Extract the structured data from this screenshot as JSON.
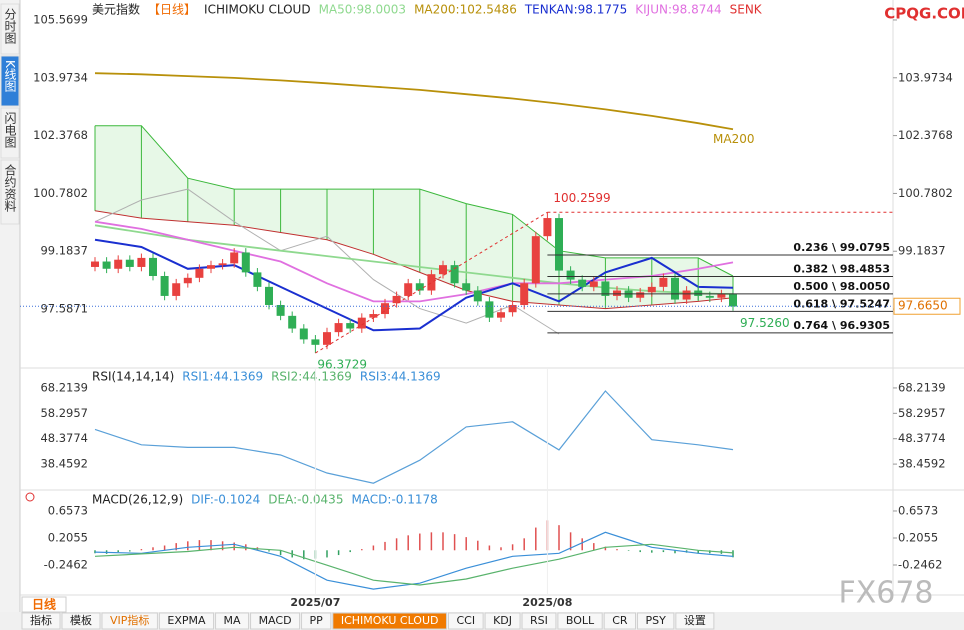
{
  "sidebar": {
    "tabs": [
      "分时图",
      "K线图",
      "闪电图",
      "合约资料"
    ],
    "active": 1
  },
  "legend": [
    {
      "text": "美元指数",
      "color": "#222222"
    },
    {
      "text": "【日线】",
      "color": "#f06a00"
    },
    {
      "text": "ICHIMOKU CLOUD",
      "color": "#222222"
    },
    {
      "text": "MA50:98.0003",
      "color": "#8fd98f"
    },
    {
      "text": "MA200:102.5486",
      "color": "#b8900a"
    },
    {
      "text": "TENKAN:98.1775",
      "color": "#1a2fd0"
    },
    {
      "text": "KIJUN:98.8744",
      "color": "#e070e0"
    },
    {
      "text": "SENK",
      "color": "#e03030"
    }
  ],
  "watermarks": {
    "top": "CPQG.COM",
    "bottom": "FX678"
  },
  "chart_data": [
    {
      "type": "candlestick",
      "ylim": [
        95.96,
        105.9
      ],
      "yticks": [
        105.5699,
        103.9734,
        102.3768,
        100.7802,
        99.1837,
        97.5871
      ],
      "candles": [
        [
          98.75,
          99.02,
          98.63,
          98.9
        ],
        [
          98.9,
          99.02,
          98.58,
          98.7
        ],
        [
          98.7,
          99.07,
          98.58,
          98.95
        ],
        [
          98.95,
          99.07,
          98.63,
          98.75
        ],
        [
          98.75,
          99.12,
          98.63,
          99.0
        ],
        [
          99.0,
          99.12,
          98.38,
          98.5
        ],
        [
          98.5,
          98.62,
          97.83,
          97.95
        ],
        [
          97.95,
          98.42,
          97.83,
          98.3
        ],
        [
          98.3,
          98.57,
          98.18,
          98.45
        ],
        [
          98.45,
          98.82,
          98.33,
          98.7
        ],
        [
          98.7,
          98.92,
          98.58,
          98.8
        ],
        [
          98.8,
          98.97,
          98.68,
          98.85
        ],
        [
          98.85,
          99.27,
          98.73,
          99.15
        ],
        [
          99.15,
          99.27,
          98.48,
          98.6
        ],
        [
          98.6,
          98.72,
          98.08,
          98.2
        ],
        [
          98.2,
          98.32,
          97.58,
          97.7
        ],
        [
          97.7,
          97.82,
          97.28,
          97.4
        ],
        [
          97.4,
          97.52,
          96.93,
          97.05
        ],
        [
          97.05,
          97.17,
          96.63,
          96.75
        ],
        [
          96.75,
          96.87,
          96.3729,
          96.6
        ],
        [
          96.6,
          97.07,
          96.48,
          96.95
        ],
        [
          96.95,
          97.32,
          96.83,
          97.2
        ],
        [
          97.2,
          97.32,
          96.93,
          97.05
        ],
        [
          97.05,
          97.47,
          96.93,
          97.35
        ],
        [
          97.35,
          97.57,
          97.23,
          97.45
        ],
        [
          97.45,
          97.87,
          97.33,
          97.75
        ],
        [
          97.75,
          98.07,
          97.63,
          97.95
        ],
        [
          97.95,
          98.42,
          97.83,
          98.3
        ],
        [
          98.3,
          98.42,
          97.98,
          98.1
        ],
        [
          98.1,
          98.67,
          97.98,
          98.55
        ],
        [
          98.55,
          98.92,
          98.43,
          98.8
        ],
        [
          98.8,
          98.92,
          98.18,
          98.3
        ],
        [
          98.3,
          98.42,
          97.98,
          98.1
        ],
        [
          98.1,
          98.22,
          97.68,
          97.8
        ],
        [
          97.8,
          97.92,
          97.23,
          97.35
        ],
        [
          97.35,
          97.62,
          97.23,
          97.5
        ],
        [
          97.5,
          97.82,
          97.38,
          97.7
        ],
        [
          97.7,
          98.42,
          97.58,
          98.3
        ],
        [
          98.3,
          99.72,
          98.18,
          99.6
        ],
        [
          99.6,
          100.2599,
          99.48,
          100.1
        ],
        [
          100.1,
          100.22,
          98.53,
          98.65
        ],
        [
          98.65,
          98.77,
          98.28,
          98.4
        ],
        [
          98.4,
          98.52,
          98.08,
          98.2
        ],
        [
          98.2,
          98.47,
          98.08,
          98.35
        ],
        [
          98.35,
          98.47,
          97.83,
          97.95
        ],
        [
          97.95,
          98.22,
          97.83,
          98.1
        ],
        [
          98.1,
          98.22,
          97.78,
          97.9
        ],
        [
          97.9,
          98.17,
          97.78,
          98.05
        ],
        [
          98.05,
          98.32,
          97.93,
          98.2
        ],
        [
          98.2,
          98.57,
          98.08,
          98.45
        ],
        [
          98.45,
          98.57,
          97.73,
          97.85
        ],
        [
          97.85,
          98.22,
          97.73,
          98.1
        ],
        [
          98.1,
          98.22,
          97.83,
          97.95
        ],
        [
          97.95,
          98.07,
          97.78,
          97.9
        ],
        [
          97.9,
          98.12,
          97.78,
          98.0
        ],
        [
          98.0,
          98.12,
          97.54,
          97.66
        ]
      ],
      "x": [
        0,
        4,
        8,
        12,
        16,
        20,
        24,
        28,
        32,
        36,
        40,
        44,
        48,
        52,
        55
      ],
      "cloud": {
        "span_a": [
          102.65,
          102.65,
          101.2,
          100.9,
          100.9,
          100.9,
          100.9,
          100.9,
          100.5,
          100.2,
          99.2,
          99.0,
          99.0,
          99.0,
          98.5
        ],
        "span_b": [
          100.3,
          100.1,
          100.0,
          99.9,
          99.7,
          99.5,
          99.1,
          98.6,
          98.1,
          97.8,
          97.7,
          97.6,
          97.7,
          97.8,
          97.9
        ]
      },
      "lines": [
        {
          "name": "MA200",
          "color": "#b8900a",
          "values": [
            104.1,
            104.07,
            104.02,
            103.97,
            103.9,
            103.82,
            103.73,
            103.64,
            103.52,
            103.4,
            103.26,
            103.1,
            102.92,
            102.72,
            102.55
          ]
        },
        {
          "color": "#8fd98f",
          "values": [
            99.9,
            99.7,
            99.5,
            99.35,
            99.2,
            99.05,
            98.9,
            98.75,
            98.6,
            98.45,
            98.3,
            98.18,
            98.08,
            98.02,
            98.0003
          ]
        },
        {
          "color": "#e070e0",
          "values": [
            100.0,
            99.8,
            99.5,
            99.2,
            98.9,
            98.3,
            97.8,
            97.8,
            98.0,
            98.3,
            98.3,
            98.4,
            98.5,
            98.7,
            98.8744
          ]
        },
        {
          "color": "#1a2fd0",
          "values": [
            99.5,
            99.3,
            98.7,
            98.8,
            98.2,
            97.6,
            97.0,
            97.05,
            97.9,
            98.3,
            97.8,
            98.6,
            99.0,
            98.2,
            98.1775
          ]
        }
      ],
      "chikou": {
        "color": "#b0b0b0",
        "x": [
          0,
          4,
          8,
          12,
          16,
          20,
          24,
          28,
          32,
          36,
          40
        ],
        "values": [
          100.0,
          100.6,
          100.9,
          100.0,
          99.2,
          99.6,
          98.4,
          97.6,
          97.2,
          97.7,
          96.9
        ]
      },
      "fib": [
        {
          "label": "0.236 \\ 99.0795",
          "value": 99.0795
        },
        {
          "label": "0.382 \\ 98.4853",
          "value": 98.4853
        },
        {
          "label": "0.500 \\ 98.0050",
          "value": 98.005
        },
        {
          "label": "0.618 \\ 97.5247",
          "value": 97.5247
        },
        {
          "label": "0.764 \\ 96.9305",
          "value": 96.9305
        }
      ],
      "high": 100.2599,
      "low": 96.3729,
      "marker": {
        "value": 97.526,
        "label": "97.5260"
      },
      "last": {
        "value": 97.665,
        "label": "97.6650"
      }
    },
    {
      "type": "line",
      "legend": [
        {
          "text": "RSI(14,14,14)",
          "color": "#222222"
        },
        {
          "text": "RSI1:44.1369",
          "color": "#3a8fd8"
        },
        {
          "text": "RSI2:44.1369",
          "color": "#59b36c"
        },
        {
          "text": "RSI3:44.1369",
          "color": "#3a8fd8"
        }
      ],
      "ylim": [
        28.34,
        74.44
      ],
      "yticks": [
        68.2139,
        58.2957,
        48.3774,
        38.4592
      ],
      "x": [
        0,
        4,
        8,
        12,
        16,
        20,
        24,
        28,
        32,
        36,
        40,
        44,
        48,
        52,
        55
      ],
      "series": [
        {
          "color": "#5aa0d8",
          "values": [
            52,
            46,
            45,
            45,
            42,
            35,
            31,
            40,
            53,
            55,
            44,
            67,
            48,
            46,
            44.1369
          ]
        }
      ]
    },
    {
      "type": "macd",
      "legend": [
        {
          "text": "MACD(26,12,9)",
          "color": "#222222"
        },
        {
          "text": "DIF:-0.1024",
          "color": "#3a8fd8"
        },
        {
          "text": "DEA:-0.0435",
          "color": "#59b36c"
        },
        {
          "text": "MACD:-0.1178",
          "color": "#3a8fd8"
        }
      ],
      "ylim": [
        -0.748,
        0.958
      ],
      "yticks": [
        0.6573,
        0.2055,
        -0.2462
      ],
      "x": [
        0,
        4,
        8,
        12,
        16,
        20,
        24,
        28,
        32,
        36,
        40,
        44,
        48,
        52,
        55
      ],
      "histogram": [
        -0.05,
        -0.06,
        -0.03,
        -0.02,
        0.02,
        0.05,
        0.08,
        0.12,
        0.15,
        0.17,
        0.17,
        0.15,
        0.13,
        0.1,
        0.05,
        -0.02,
        -0.08,
        -0.12,
        -0.15,
        -0.14,
        -0.12,
        -0.08,
        -0.03,
        0.02,
        0.08,
        0.14,
        0.2,
        0.25,
        0.28,
        0.3,
        0.3,
        0.27,
        0.22,
        0.16,
        0.08,
        0.05,
        0.1,
        0.2,
        0.38,
        0.5,
        0.42,
        0.3,
        0.2,
        0.12,
        0.06,
        0.02,
        -0.01,
        -0.03,
        -0.04,
        -0.03,
        -0.05,
        -0.04,
        -0.05,
        -0.05,
        -0.06,
        -0.1178
      ],
      "series": [
        {
          "color": "#3a8fd8",
          "values": [
            -0.03,
            -0.05,
            0.05,
            0.1,
            -0.1,
            -0.5,
            -0.65,
            -0.55,
            -0.3,
            -0.1,
            -0.05,
            0.3,
            0.05,
            -0.05,
            -0.1024
          ]
        },
        {
          "color": "#59b36c",
          "values": [
            -0.1,
            -0.06,
            -0.02,
            0.05,
            0.0,
            -0.25,
            -0.5,
            -0.58,
            -0.48,
            -0.3,
            -0.15,
            0.05,
            0.1,
            0.0,
            -0.0435
          ]
        }
      ],
      "xticks": [
        {
          "value": 19,
          "label": "2025/07"
        },
        {
          "value": 39,
          "label": "2025/08"
        }
      ]
    }
  ],
  "period_tab": "日线",
  "toolbar": {
    "items": [
      "指标",
      "模板",
      "VIP指标",
      "EXPMA",
      "MA",
      "MACD",
      "PP",
      "ICHIMOKU CLOUD",
      "CCI",
      "KDJ",
      "RSI",
      "BOLL",
      "CR",
      "PSY",
      "设置"
    ],
    "active": 7
  }
}
